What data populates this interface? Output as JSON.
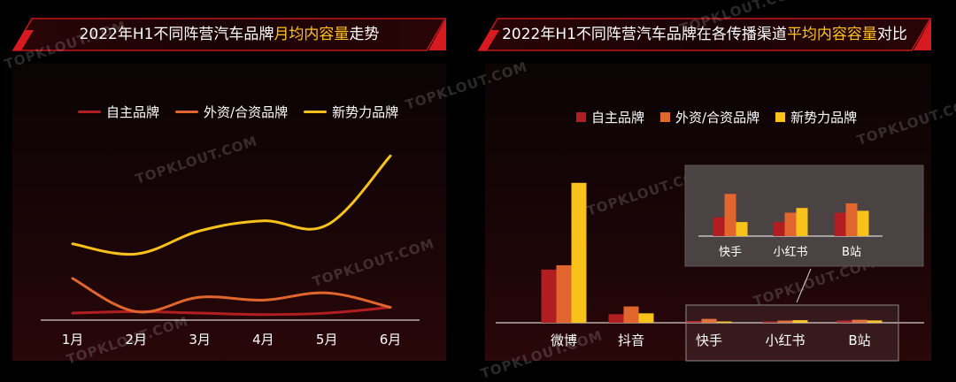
{
  "left_chart": {
    "title_pre": "2022年H1不同阵营汽车品牌",
    "title_hl": "月均内容量",
    "title_post": "走势"
  },
  "right_chart": {
    "title_pre": "2022年H1不同阵营汽车品牌在各传播渠道",
    "title_hl": "平均内容容量",
    "title_post": "对比",
    "zoom_note": "inset magnifies 快手 / 小红书 / B站"
  },
  "watermark": "TOPKLOUT.COM",
  "colors": {
    "series_1": "#b01e22",
    "series_2": "#e0662e",
    "series_3": "#f8c21a",
    "highlight": "#ffc21a",
    "banner": "#c4161c"
  },
  "chart_data": [
    {
      "type": "line",
      "title": "2022年H1不同阵营汽车品牌月均内容量走势",
      "categories": [
        "1月",
        "2月",
        "3月",
        "4月",
        "5月",
        "6月"
      ],
      "series": [
        {
          "name": "自主品牌",
          "values": [
            11,
            12,
            11,
            10,
            11,
            15
          ]
        },
        {
          "name": "外资/合资品牌",
          "values": [
            35,
            12,
            22,
            20,
            25,
            15
          ]
        },
        {
          "name": "新势力品牌",
          "values": [
            59,
            52,
            68,
            75,
            72,
            120
          ]
        }
      ],
      "ylim": [
        0,
        130
      ],
      "legend": "top",
      "grid": false
    },
    {
      "type": "bar",
      "title": "2022年H1不同阵营汽车品牌在各传播渠道平均内容容量对比",
      "categories": [
        "微博",
        "抖音",
        "快手",
        "小红书",
        "B站"
      ],
      "series": [
        {
          "name": "自主品牌",
          "values": [
            62,
            10,
            2,
            1.5,
            2.5
          ]
        },
        {
          "name": "外资/合资品牌",
          "values": [
            67,
            19,
            4.5,
            2.5,
            3.5
          ]
        },
        {
          "name": "新势力品牌",
          "values": [
            163,
            11,
            1.5,
            3.0,
            2.7
          ]
        }
      ],
      "ylim": [
        0,
        170
      ],
      "legend": "top",
      "grid": false
    }
  ]
}
